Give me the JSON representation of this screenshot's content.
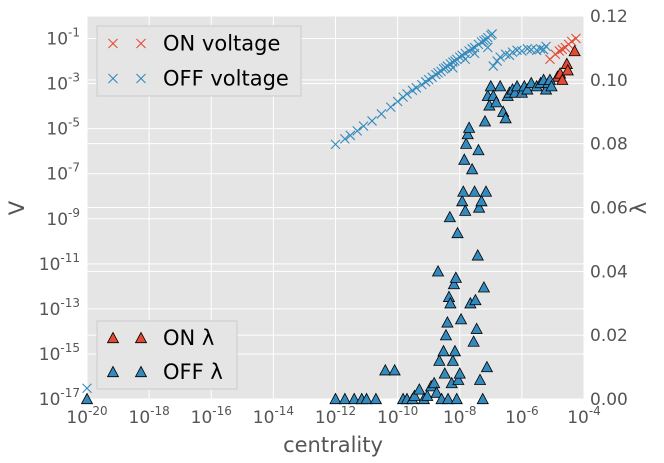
{
  "chart_data": {
    "type": "scatter",
    "xlabel": "centrality",
    "ylabel_left": "V",
    "ylabel_right": "λ",
    "x_scale": "log",
    "y_left_scale": "log",
    "xlim": [
      1e-20,
      0.0001
    ],
    "ylim_left": [
      1e-17,
      1
    ],
    "ylim_right": [
      0.0,
      0.12
    ],
    "x_ticks": [
      {
        "base": "10",
        "exp": "-20"
      },
      {
        "base": "10",
        "exp": "-18"
      },
      {
        "base": "10",
        "exp": "-16"
      },
      {
        "base": "10",
        "exp": "-14"
      },
      {
        "base": "10",
        "exp": "-12"
      },
      {
        "base": "10",
        "exp": "-10"
      },
      {
        "base": "10",
        "exp": "-8"
      },
      {
        "base": "10",
        "exp": "-6"
      },
      {
        "base": "10",
        "exp": "-4"
      }
    ],
    "y_left_ticks": [
      {
        "base": "10",
        "exp": "-1"
      },
      {
        "base": "10",
        "exp": "-3"
      },
      {
        "base": "10",
        "exp": "-5"
      },
      {
        "base": "10",
        "exp": "-7"
      },
      {
        "base": "10",
        "exp": "-9"
      },
      {
        "base": "10",
        "exp": "-11"
      },
      {
        "base": "10",
        "exp": "-13"
      },
      {
        "base": "10",
        "exp": "-15"
      },
      {
        "base": "10",
        "exp": "-17"
      }
    ],
    "y_right_ticks": [
      "0.12",
      "0.10",
      "0.08",
      "0.06",
      "0.04",
      "0.02",
      "0.00"
    ],
    "grid": true,
    "legends": [
      {
        "placement": "top-left",
        "entries": [
          {
            "label": "ON voltage",
            "color": "#e24a33",
            "marker": "x"
          },
          {
            "label": "OFF voltage",
            "color": "#348abd",
            "marker": "x"
          }
        ]
      },
      {
        "placement": "bottom-left",
        "entries": [
          {
            "label": "ON λ",
            "color": "#e24a33",
            "marker": "triangle"
          },
          {
            "label": "OFF λ",
            "color": "#348abd",
            "marker": "triangle"
          }
        ]
      }
    ],
    "series": [
      {
        "name": "ON voltage",
        "axis": "left",
        "marker": "x",
        "color": "#e24a33",
        "points": [
          {
            "x": 8e-06,
            "y": 0.012
          },
          {
            "x": 1.2e-05,
            "y": 0.02
          },
          {
            "x": 1.6e-05,
            "y": 0.028
          },
          {
            "x": 2e-05,
            "y": 0.033
          },
          {
            "x": 2.5e-05,
            "y": 0.04
          },
          {
            "x": 3.2e-05,
            "y": 0.055
          },
          {
            "x": 4e-05,
            "y": 0.075
          },
          {
            "x": 5.5e-05,
            "y": 0.1
          }
        ]
      },
      {
        "name": "OFF voltage",
        "axis": "left",
        "marker": "x",
        "color": "#348abd",
        "points": [
          {
            "x": 1e-20,
            "y": 3e-17
          },
          {
            "x": 1e-12,
            "y": 2e-06
          },
          {
            "x": 2e-12,
            "y": 3.5e-06
          },
          {
            "x": 3e-12,
            "y": 5e-06
          },
          {
            "x": 5e-12,
            "y": 8e-06
          },
          {
            "x": 8e-12,
            "y": 1.3e-05
          },
          {
            "x": 1.5e-11,
            "y": 2.2e-05
          },
          {
            "x": 3e-11,
            "y": 4.5e-05
          },
          {
            "x": 6e-11,
            "y": 9e-05
          },
          {
            "x": 1e-10,
            "y": 0.00016
          },
          {
            "x": 1.5e-10,
            "y": 0.00025
          },
          {
            "x": 2e-10,
            "y": 0.00035
          },
          {
            "x": 3e-10,
            "y": 0.0005
          },
          {
            "x": 4e-10,
            "y": 0.00065
          },
          {
            "x": 6e-10,
            "y": 0.0009
          },
          {
            "x": 8e-10,
            "y": 0.0012
          },
          {
            "x": 1e-09,
            "y": 0.0015
          },
          {
            "x": 1.3e-09,
            "y": 0.0019
          },
          {
            "x": 1.7e-09,
            "y": 0.0025
          },
          {
            "x": 2e-09,
            "y": 0.003
          },
          {
            "x": 2.5e-09,
            "y": 0.0035
          },
          {
            "x": 3e-09,
            "y": 0.0045
          },
          {
            "x": 3.5e-09,
            "y": 0.005
          },
          {
            "x": 4e-09,
            "y": 0.006
          },
          {
            "x": 5e-09,
            "y": 0.0075
          },
          {
            "x": 6e-09,
            "y": 0.009
          },
          {
            "x": 7e-09,
            "y": 0.01
          },
          {
            "x": 8e-09,
            "y": 0.012
          },
          {
            "x": 1e-08,
            "y": 0.015
          },
          {
            "x": 1.2e-08,
            "y": 0.018
          },
          {
            "x": 1.5e-08,
            "y": 0.022
          },
          {
            "x": 2e-08,
            "y": 0.028
          },
          {
            "x": 2.5e-08,
            "y": 0.035
          },
          {
            "x": 3e-08,
            "y": 0.04
          },
          {
            "x": 4e-08,
            "y": 0.055
          },
          {
            "x": 5e-08,
            "y": 0.07
          },
          {
            "x": 6e-08,
            "y": 0.08
          },
          {
            "x": 7e-08,
            "y": 0.09
          },
          {
            "x": 8e-08,
            "y": 0.11
          },
          {
            "x": 1e-07,
            "y": 0.14
          },
          {
            "x": 1.1e-07,
            "y": 0.16
          },
          {
            "x": 6e-09,
            "y": 0.005
          },
          {
            "x": 1.5e-08,
            "y": 0.012
          },
          {
            "x": 3e-08,
            "y": 0.022
          },
          {
            "x": 8e-08,
            "y": 0.04
          },
          {
            "x": 1.2e-07,
            "y": 0.006
          },
          {
            "x": 1.6e-07,
            "y": 0.01
          },
          {
            "x": 2e-07,
            "y": 0.015
          },
          {
            "x": 3e-07,
            "y": 0.02
          },
          {
            "x": 4e-07,
            "y": 0.018
          },
          {
            "x": 5e-07,
            "y": 0.025
          },
          {
            "x": 7e-07,
            "y": 0.03
          },
          {
            "x": 1e-06,
            "y": 0.028
          },
          {
            "x": 1.5e-06,
            "y": 0.035
          },
          {
            "x": 2e-06,
            "y": 0.032
          },
          {
            "x": 3e-06,
            "y": 0.03
          },
          {
            "x": 4e-06,
            "y": 0.035
          },
          {
            "x": 5e-06,
            "y": 0.032
          },
          {
            "x": 6e-06,
            "y": 0.045
          }
        ]
      },
      {
        "name": "ON λ",
        "axis": "right",
        "marker": "triangle",
        "color": "#e24a33",
        "points": [
          {
            "x": 1.4e-05,
            "y": 0.101
          },
          {
            "x": 1.7e-05,
            "y": 0.102
          },
          {
            "x": 2e-05,
            "y": 0.1
          },
          {
            "x": 2.8e-05,
            "y": 0.105
          },
          {
            "x": 3e-05,
            "y": 0.103
          },
          {
            "x": 5e-05,
            "y": 0.109
          }
        ]
      },
      {
        "name": "OFF λ",
        "axis": "right",
        "marker": "triangle",
        "color": "#348abd",
        "points": [
          {
            "x": 1e-20,
            "y": 0.0
          },
          {
            "x": 1e-12,
            "y": 0.0
          },
          {
            "x": 2e-12,
            "y": 0.0
          },
          {
            "x": 4e-12,
            "y": 0.0
          },
          {
            "x": 7e-12,
            "y": 0.0
          },
          {
            "x": 1e-11,
            "y": 0.0
          },
          {
            "x": 2e-11,
            "y": 0.0
          },
          {
            "x": 4e-11,
            "y": 0.009
          },
          {
            "x": 8e-11,
            "y": 0.009
          },
          {
            "x": 1.5e-10,
            "y": 0.0
          },
          {
            "x": 2e-10,
            "y": 0.0
          },
          {
            "x": 3e-10,
            "y": 0.0
          },
          {
            "x": 3.5e-10,
            "y": 0.001
          },
          {
            "x": 5e-10,
            "y": 0.003
          },
          {
            "x": 7e-10,
            "y": 0.0
          },
          {
            "x": 9e-10,
            "y": 0.001
          },
          {
            "x": 1.2e-09,
            "y": 0.004
          },
          {
            "x": 1.5e-09,
            "y": 0.005
          },
          {
            "x": 1.8e-09,
            "y": 0.002
          },
          {
            "x": 2e-09,
            "y": 0.04
          },
          {
            "x": 2.2e-09,
            "y": 0.012
          },
          {
            "x": 2.6e-09,
            "y": 0.0
          },
          {
            "x": 3e-09,
            "y": 0.015
          },
          {
            "x": 3.3e-09,
            "y": 0.008
          },
          {
            "x": 3.6e-09,
            "y": 0.02
          },
          {
            "x": 4e-09,
            "y": 0.024
          },
          {
            "x": 4.2e-09,
            "y": 0.0
          },
          {
            "x": 4.5e-09,
            "y": 0.032
          },
          {
            "x": 4.8e-09,
            "y": 0.057
          },
          {
            "x": 5e-09,
            "y": 0.03
          },
          {
            "x": 5.5e-09,
            "y": 0.005
          },
          {
            "x": 6e-09,
            "y": 0.012
          },
          {
            "x": 6.5e-09,
            "y": 0.036
          },
          {
            "x": 7e-09,
            "y": 0.015
          },
          {
            "x": 7.5e-09,
            "y": 0.038
          },
          {
            "x": 8e-09,
            "y": 0.0
          },
          {
            "x": 8.5e-09,
            "y": 0.052
          },
          {
            "x": 9e-09,
            "y": 0.006
          },
          {
            "x": 1e-08,
            "y": 0.008
          },
          {
            "x": 1.1e-08,
            "y": 0.025
          },
          {
            "x": 1.2e-08,
            "y": 0.062
          },
          {
            "x": 1.3e-08,
            "y": 0.065
          },
          {
            "x": 1.4e-08,
            "y": 0.075
          },
          {
            "x": 1.5e-08,
            "y": 0.059
          },
          {
            "x": 1.6e-08,
            "y": 0.08
          },
          {
            "x": 1.8e-08,
            "y": 0.083
          },
          {
            "x": 2e-08,
            "y": 0.085
          },
          {
            "x": 2.2e-08,
            "y": 0.03
          },
          {
            "x": 2.5e-08,
            "y": 0.072
          },
          {
            "x": 2.8e-08,
            "y": 0.018
          },
          {
            "x": 3e-08,
            "y": 0.065
          },
          {
            "x": 3.2e-08,
            "y": 0.031
          },
          {
            "x": 3.5e-08,
            "y": 0.022
          },
          {
            "x": 3.8e-08,
            "y": 0.045
          },
          {
            "x": 4e-08,
            "y": 0.078
          },
          {
            "x": 4.2e-08,
            "y": 0.06
          },
          {
            "x": 4.5e-08,
            "y": 0.006
          },
          {
            "x": 5e-08,
            "y": 0.062
          },
          {
            "x": 5.5e-08,
            "y": 0.0
          },
          {
            "x": 6e-08,
            "y": 0.035
          },
          {
            "x": 6.5e-08,
            "y": 0.087
          },
          {
            "x": 7e-08,
            "y": 0.065
          },
          {
            "x": 7.5e-08,
            "y": 0.01
          },
          {
            "x": 8e-08,
            "y": 0.095
          },
          {
            "x": 9e-08,
            "y": 0.092
          },
          {
            "x": 1e-07,
            "y": 0.098
          },
          {
            "x": 1.2e-07,
            "y": 0.095
          },
          {
            "x": 1.5e-07,
            "y": 0.093
          },
          {
            "x": 2e-07,
            "y": 0.098
          },
          {
            "x": 2.5e-07,
            "y": 0.09
          },
          {
            "x": 3e-07,
            "y": 0.088
          },
          {
            "x": 3.5e-07,
            "y": 0.095
          },
          {
            "x": 4e-07,
            "y": 0.096
          },
          {
            "x": 5e-07,
            "y": 0.097
          },
          {
            "x": 6e-07,
            "y": 0.096
          },
          {
            "x": 7e-07,
            "y": 0.098
          },
          {
            "x": 1e-06,
            "y": 0.096
          },
          {
            "x": 1.2e-06,
            "y": 0.098
          },
          {
            "x": 1.5e-06,
            "y": 0.097
          },
          {
            "x": 2e-06,
            "y": 0.099
          },
          {
            "x": 3e-06,
            "y": 0.098
          },
          {
            "x": 4e-06,
            "y": 0.099
          },
          {
            "x": 5e-06,
            "y": 0.1
          },
          {
            "x": 6e-06,
            "y": 0.097
          },
          {
            "x": 7e-06,
            "y": 0.099
          },
          {
            "x": 8e-06,
            "y": 0.1
          },
          {
            "x": 9e-06,
            "y": 0.098
          }
        ]
      }
    ]
  }
}
